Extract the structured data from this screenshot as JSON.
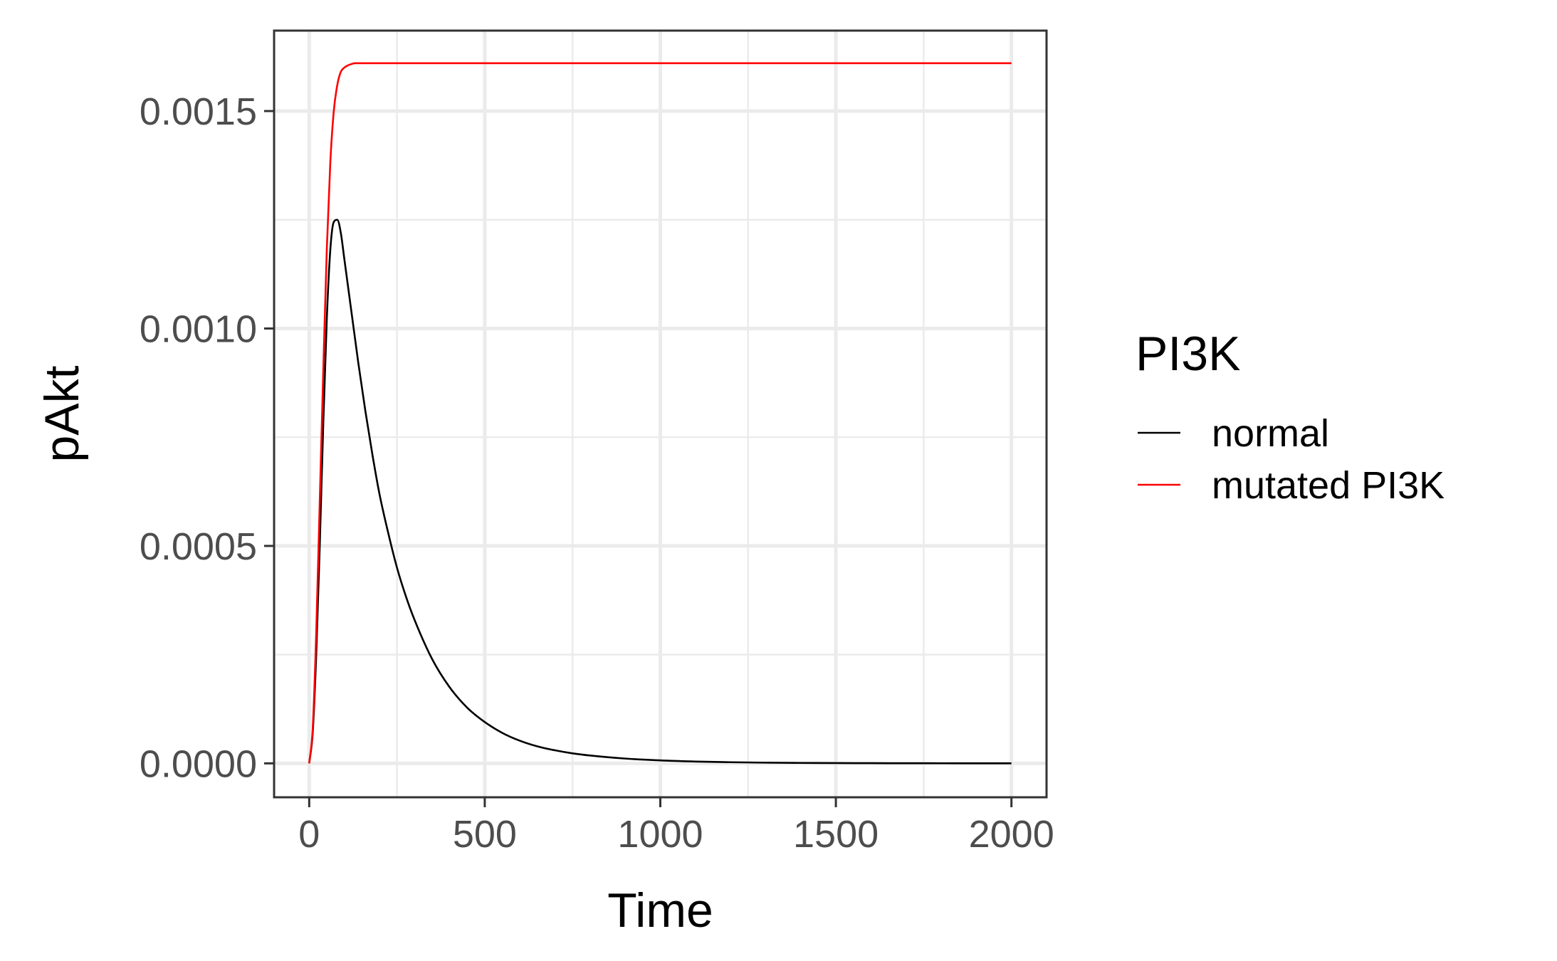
{
  "chart_data": {
    "type": "line",
    "xlabel": "Time",
    "ylabel": "pAkt",
    "xlim": [
      -100,
      2100
    ],
    "ylim": [
      -7.8e-05,
      0.001685
    ],
    "x_ticks": [
      0,
      500,
      1000,
      1500,
      2000
    ],
    "x_tick_labels": [
      "0",
      "500",
      "1000",
      "1500",
      "2000"
    ],
    "y_ticks": [
      0,
      0.0005,
      0.001,
      0.0015
    ],
    "y_tick_labels": [
      "0.0000",
      "0.0005",
      "0.0010",
      "0.0015"
    ],
    "grid": true,
    "legend": {
      "title": "PI3K",
      "position": "right"
    },
    "series": [
      {
        "name": "normal",
        "color": "#000000",
        "x": [
          0,
          10,
          20,
          30,
          40,
          50,
          60,
          70,
          80,
          90,
          100,
          120,
          140,
          160,
          180,
          200,
          225,
          250,
          275,
          300,
          350,
          400,
          450,
          500,
          550,
          600,
          650,
          700,
          750,
          800,
          900,
          1000,
          1100,
          1200,
          1300,
          1400,
          1500,
          1600,
          1700,
          1800,
          1900,
          2000
        ],
        "y": [
          0,
          7e-05,
          0.00025,
          0.0005,
          0.00078,
          0.00102,
          0.00118,
          0.001245,
          0.00125,
          0.00122,
          0.00116,
          0.00104,
          0.00092,
          0.00081,
          0.00071,
          0.00062,
          0.00053,
          0.00045,
          0.000385,
          0.00033,
          0.00024,
          0.000175,
          0.000128,
          9.5e-05,
          7e-05,
          5.2e-05,
          3.9e-05,
          3e-05,
          2.3e-05,
          1.8e-05,
          1.1e-05,
          6.8e-06,
          4.2e-06,
          2.6e-06,
          1.6e-06,
          1e-06,
          6e-07,
          4e-07,
          2.5e-07,
          1.5e-07,
          1e-07,
          6e-08
        ]
      },
      {
        "name": "mutated PI3K",
        "color": "#ff0000",
        "x": [
          0,
          10,
          20,
          30,
          40,
          50,
          60,
          70,
          80,
          90,
          100,
          110,
          120,
          130,
          150,
          200,
          300,
          500,
          1000,
          1500,
          2000
        ],
        "y": [
          0,
          8e-05,
          0.0003,
          0.0006,
          0.0009,
          0.00118,
          0.00138,
          0.0015,
          0.00156,
          0.00159,
          0.0016,
          0.001605,
          0.001608,
          0.00161,
          0.00161,
          0.00161,
          0.00161,
          0.00161,
          0.00161,
          0.00161,
          0.00161
        ]
      }
    ]
  }
}
